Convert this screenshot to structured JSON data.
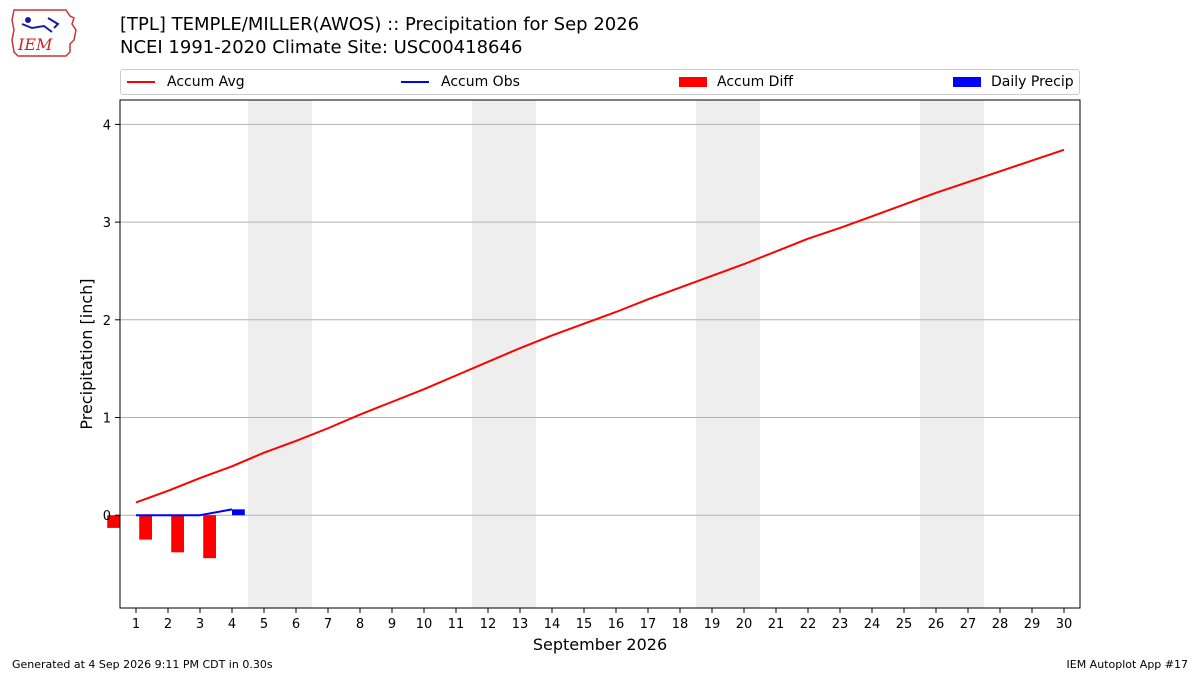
{
  "header": {
    "title_line1": "[TPL] TEMPLE/MILLER(AWOS) :: Precipitation for Sep 2026",
    "title_line2": "NCEI 1991-2020 Climate Site: USC00418646",
    "logo_text": "IEM"
  },
  "footer": {
    "left": "Generated at 4 Sep 2026 9:11 PM CDT in 0.30s",
    "right": "IEM Autoplot App #17"
  },
  "colors": {
    "avg": "#ff0000",
    "obs": "#0000ff",
    "diff": "#ff0000",
    "daily": "#0000ff",
    "weekend": "#eeeeee",
    "grid": "#b0b0b0"
  },
  "chart_data": {
    "type": "line",
    "xlabel": "September 2026",
    "ylabel": "Precipitation [inch]",
    "xlim": [
      0.5,
      30.5
    ],
    "ylim": [
      -0.95,
      4.25
    ],
    "yticks": [
      0,
      1,
      2,
      3,
      4
    ],
    "grid": "horizontal",
    "legend_placement": "top",
    "weekend_shading": [
      [
        5,
        6
      ],
      [
        12,
        13
      ],
      [
        19,
        20
      ],
      [
        26,
        27
      ]
    ],
    "days": [
      1,
      2,
      3,
      4,
      5,
      6,
      7,
      8,
      9,
      10,
      11,
      12,
      13,
      14,
      15,
      16,
      17,
      18,
      19,
      20,
      21,
      22,
      23,
      24,
      25,
      26,
      27,
      28,
      29,
      30
    ],
    "legend": [
      {
        "label": "Accum Avg",
        "kind": "line",
        "color": "#ff0000"
      },
      {
        "label": "Accum Obs",
        "kind": "line",
        "color": "#0000ff"
      },
      {
        "label": "Accum Diff",
        "kind": "patch",
        "color": "#ff0000"
      },
      {
        "label": "Daily Precip",
        "kind": "patch",
        "color": "#0000ff"
      }
    ],
    "series": [
      {
        "name": "Accum Avg",
        "x": [
          1,
          2,
          3,
          4,
          5,
          6,
          7,
          8,
          9,
          10,
          11,
          12,
          13,
          14,
          15,
          16,
          17,
          18,
          19,
          20,
          21,
          22,
          23,
          24,
          25,
          26,
          27,
          28,
          29,
          30
        ],
        "values": [
          0.13,
          0.25,
          0.38,
          0.5,
          0.64,
          0.76,
          0.89,
          1.03,
          1.16,
          1.29,
          1.43,
          1.57,
          1.71,
          1.84,
          1.96,
          2.08,
          2.21,
          2.33,
          2.45,
          2.57,
          2.7,
          2.83,
          2.94,
          3.06,
          3.18,
          3.3,
          3.41,
          3.52,
          3.63,
          3.74
        ]
      },
      {
        "name": "Accum Obs",
        "x": [
          1,
          2,
          3,
          4
        ],
        "values": [
          0.0,
          0.0,
          0.0,
          0.06
        ]
      },
      {
        "name": "Accum Diff",
        "x": [
          1,
          2,
          3,
          4
        ],
        "values": [
          -0.13,
          -0.25,
          -0.38,
          -0.44
        ]
      },
      {
        "name": "Daily Precip",
        "x": [
          4
        ],
        "values": [
          0.06
        ]
      }
    ]
  }
}
